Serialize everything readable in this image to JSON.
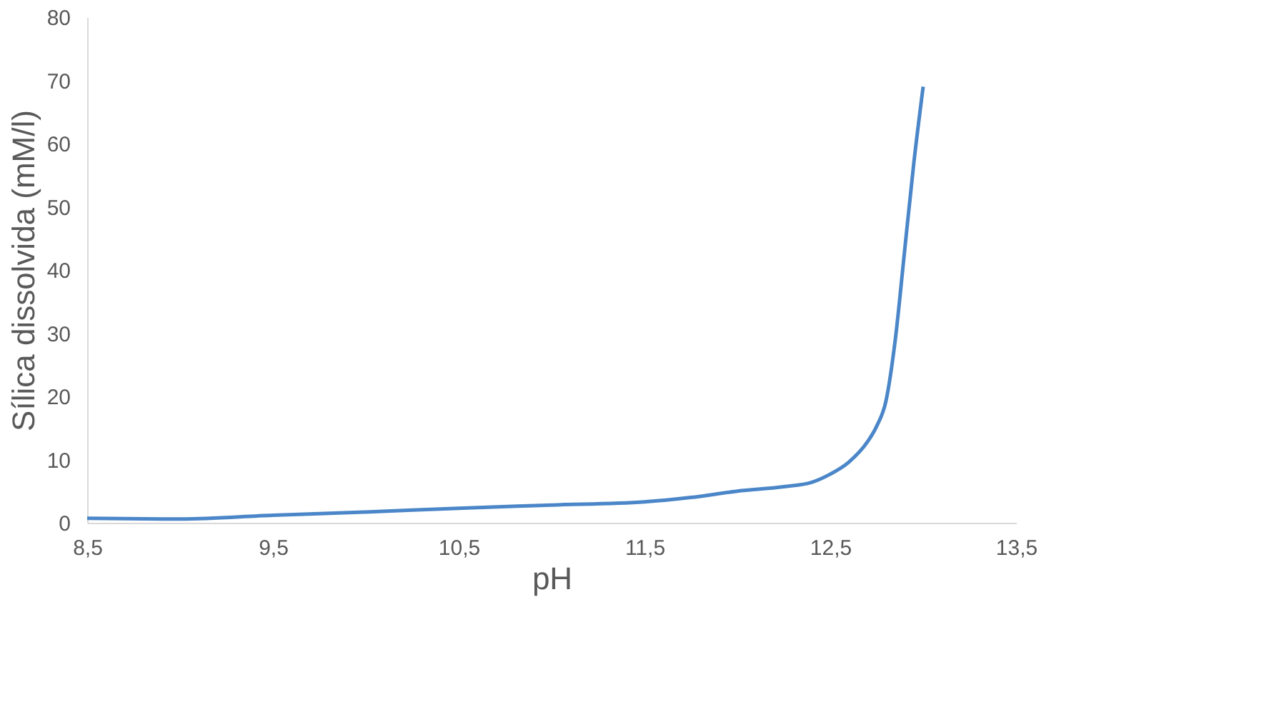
{
  "chart_data": {
    "type": "line",
    "xlabel": "pH",
    "ylabel": "Sílica dissolvida (mM/l)",
    "x": [
      8.5,
      9.0,
      9.5,
      10.0,
      10.5,
      11.0,
      11.5,
      11.75,
      12.0,
      12.25,
      12.4,
      12.5,
      12.6,
      12.7,
      12.75,
      12.8,
      12.85,
      12.9,
      12.95,
      13.0
    ],
    "series": [
      {
        "color": "#4a86c8",
        "values": [
          0.7,
          0.6,
          1.2,
          1.7,
          2.3,
          2.8,
          3.3,
          4.0,
          5.0,
          5.7,
          6.4,
          7.7,
          9.6,
          12.8,
          15.3,
          19.3,
          29,
          43,
          57,
          69
        ]
      }
    ],
    "xlim": [
      8.5,
      13.5
    ],
    "xticks": [
      {
        "value": 8.5,
        "label": "8,5"
      },
      {
        "value": 9.5,
        "label": "9,5"
      },
      {
        "value": 10.5,
        "label": "10,5"
      },
      {
        "value": 11.5,
        "label": "11,5"
      },
      {
        "value": 12.5,
        "label": "12,5"
      },
      {
        "value": 13.5,
        "label": "13,5"
      }
    ],
    "ylim": [
      0,
      80
    ],
    "yticks": [
      0,
      10,
      20,
      30,
      40,
      50,
      60,
      70,
      80
    ],
    "grid": false,
    "legend": false,
    "marker": "none",
    "line_style": "solid"
  }
}
